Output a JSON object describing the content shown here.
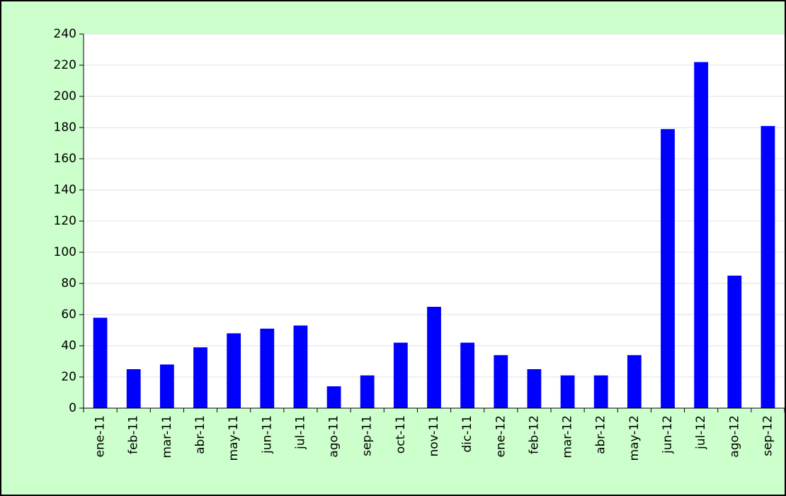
{
  "chart_data": {
    "type": "bar",
    "categories": [
      "ene-11",
      "feb-11",
      "mar-11",
      "abr-11",
      "may-11",
      "jun-11",
      "jul-11",
      "ago-11",
      "sep-11",
      "oct-11",
      "nov-11",
      "dic-11",
      "ene-12",
      "feb-12",
      "mar-12",
      "abr-12",
      "may-12",
      "jun-12",
      "jul-12",
      "ago-12",
      "sep-12"
    ],
    "values": [
      58,
      25,
      28,
      39,
      48,
      51,
      53,
      14,
      21,
      42,
      65,
      42,
      34,
      25,
      21,
      21,
      34,
      179,
      222,
      85,
      181
    ],
    "color": "#0000ff",
    "ylim": [
      0,
      240
    ],
    "yticks": [
      0,
      20,
      40,
      60,
      80,
      100,
      120,
      140,
      160,
      180,
      200,
      220,
      240
    ],
    "grid": true
  }
}
